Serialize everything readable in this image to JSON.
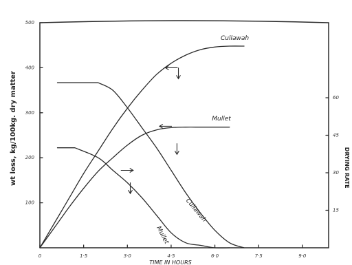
{
  "chart_data": {
    "type": "line",
    "xlabel": "TIME IN HOURS",
    "ylabel_left": "wt loss, kg/100kg. dry matter",
    "ylabel_right": "DRYING RATE",
    "xlim": [
      0,
      9.9
    ],
    "ylim_left": [
      0,
      500
    ],
    "ylim_right": [
      0,
      90
    ],
    "x_ticks": [
      {
        "value": 0,
        "label": "0"
      },
      {
        "value": 1.5,
        "label": "1·5"
      },
      {
        "value": 3.0,
        "label": "3·0"
      },
      {
        "value": 4.5,
        "label": "4·5"
      },
      {
        "value": 6.0,
        "label": "6·0"
      },
      {
        "value": 7.5,
        "label": "7·5"
      },
      {
        "value": 9.0,
        "label": "9·0"
      }
    ],
    "y_left_ticks": [
      {
        "value": 100,
        "label": "100"
      },
      {
        "value": 200,
        "label": "200"
      },
      {
        "value": 300,
        "label": "300"
      },
      {
        "value": 400,
        "label": "400"
      },
      {
        "value": 500,
        "label": "500"
      }
    ],
    "y_right_ticks": [
      {
        "value": 15,
        "label": "15"
      },
      {
        "value": 30,
        "label": "30"
      },
      {
        "value": 45,
        "label": "45"
      },
      {
        "value": 60,
        "label": "60"
      }
    ],
    "series": [
      {
        "name": "Cullawah",
        "kind": "weight_loss",
        "axis": "left",
        "x": [
          0,
          0.5,
          1.0,
          1.5,
          2.0,
          2.5,
          3.0,
          3.5,
          4.0,
          4.5,
          5.0,
          5.5,
          6.0,
          6.5,
          7.0
        ],
        "y": [
          0,
          55,
          110,
          165,
          215,
          265,
          310,
          350,
          385,
          410,
          428,
          440,
          446,
          448,
          448
        ]
      },
      {
        "name": "Mullet",
        "kind": "weight_loss",
        "axis": "left",
        "x": [
          0,
          0.5,
          1.0,
          1.5,
          2.0,
          2.5,
          3.0,
          3.5,
          4.0,
          4.5,
          5.0,
          5.5,
          6.0,
          6.5
        ],
        "y": [
          0,
          45,
          90,
          132,
          170,
          200,
          228,
          250,
          262,
          267,
          268,
          268,
          268,
          268
        ]
      },
      {
        "name": "Cullawah",
        "kind": "drying_rate",
        "axis": "right",
        "x": [
          0.6,
          2.0,
          2.5,
          3.0,
          3.5,
          4.0,
          4.5,
          5.0,
          5.5,
          6.0,
          6.5,
          7.0
        ],
        "y": [
          66,
          66,
          63,
          56,
          48,
          40,
          31,
          22,
          14,
          7,
          2,
          0
        ]
      },
      {
        "name": "Mullet",
        "kind": "drying_rate",
        "axis": "right",
        "x": [
          0.6,
          1.2,
          2.0,
          2.5,
          3.0,
          3.5,
          4.0,
          4.5,
          5.0,
          5.5,
          6.0,
          6.5
        ],
        "y": [
          40,
          40,
          36,
          31,
          26,
          20,
          13,
          6,
          2,
          1,
          0,
          0
        ]
      }
    ],
    "series_labels": [
      {
        "text": "Cullawah",
        "x": 6.2,
        "y_left": 462,
        "rotate": 0
      },
      {
        "text": "Mullet",
        "x": 5.9,
        "y_left": 283,
        "rotate": 0
      },
      {
        "text": "Cullawah",
        "x": 5.0,
        "y_left": 105,
        "rotate": 50
      },
      {
        "text": "Mullet",
        "x": 4.0,
        "y_left": 45,
        "rotate": 62
      }
    ],
    "arrows": [
      {
        "direction": "left",
        "x": 4.3,
        "y_left": 400
      },
      {
        "direction": "down",
        "x": 4.75,
        "y_left": 400
      },
      {
        "direction": "left",
        "x": 4.1,
        "y_left": 270
      },
      {
        "direction": "down",
        "x": 4.7,
        "y_left": 232
      },
      {
        "direction": "right",
        "x": 3.2,
        "y_left": 172
      },
      {
        "direction": "down",
        "x": 3.1,
        "y_left": 145
      }
    ],
    "grid": false
  }
}
